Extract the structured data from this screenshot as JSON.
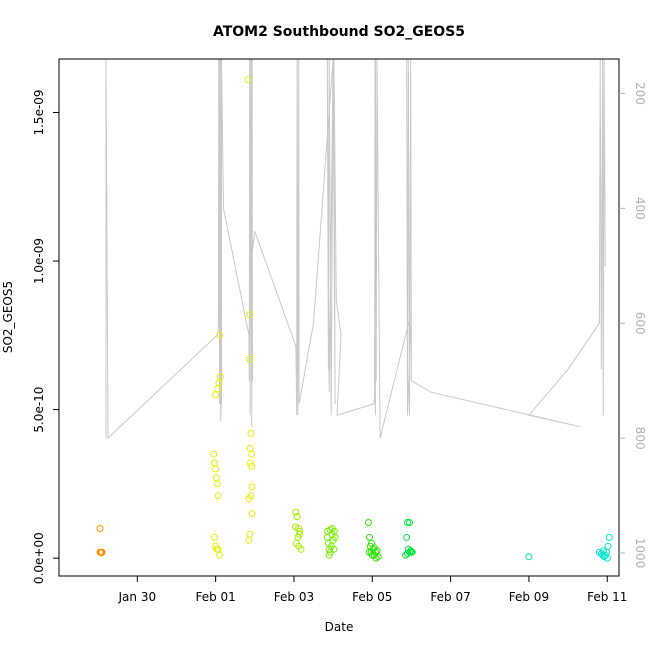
{
  "chart_data": {
    "type": "scatter",
    "title": "ATOM2 Southbound SO2_GEOS5",
    "xlabel": "Date",
    "ylabel": "SO2_GEOS5",
    "x_ticks": [
      "Jan 30",
      "Feb 01",
      "Feb 03",
      "Feb 05",
      "Feb 07",
      "Feb 09",
      "Feb 11"
    ],
    "x_tick_days": [
      30,
      32,
      34,
      36,
      38,
      40,
      42
    ],
    "y_ticks": [
      "0.0e+00",
      "5.0e-10",
      "1.0e-09",
      "1.5e-09"
    ],
    "y_tick_values": [
      0,
      5e-10,
      1e-09,
      1.5e-09
    ],
    "y2_ticks": [
      "200",
      "400",
      "600",
      "800",
      "1000"
    ],
    "y2_tick_values": [
      200,
      400,
      600,
      800,
      1000
    ],
    "xlim": [
      "Jan 28",
      "Feb 11"
    ],
    "ylim": [
      -6e-11,
      1.68e-09
    ],
    "y2lim": [
      1040,
      140
    ],
    "grid": false,
    "series": [
      {
        "color": "#ff8c00",
        "points": [
          [
            29.05,
            1e-10
          ],
          [
            29.05,
            2e-11
          ],
          [
            29.07,
            1.8e-11
          ],
          [
            29.09,
            1.9e-11
          ],
          [
            29.1,
            2e-11
          ]
        ]
      },
      {
        "color": "#e6f000",
        "points": [
          [
            31.95,
            3.5e-10
          ],
          [
            31.97,
            3.2e-10
          ],
          [
            32.0,
            3e-10
          ],
          [
            32.02,
            2.7e-10
          ],
          [
            32.04,
            2.5e-10
          ],
          [
            32.06,
            2.1e-10
          ],
          [
            31.97,
            7e-11
          ],
          [
            32.0,
            4e-11
          ],
          [
            32.03,
            3e-11
          ],
          [
            32.06,
            3e-11
          ],
          [
            32.1,
            1e-11
          ],
          [
            32.0,
            5.5e-10
          ],
          [
            32.05,
            5.7e-10
          ],
          [
            32.08,
            5.9e-10
          ],
          [
            32.12,
            6.1e-10
          ],
          [
            32.1,
            7.5e-10
          ],
          [
            32.83,
            1.61e-09
          ],
          [
            32.87,
            8.2e-10
          ],
          [
            32.87,
            6.7e-10
          ],
          [
            32.9,
            4.2e-10
          ],
          [
            32.88,
            3.7e-10
          ],
          [
            32.92,
            3.5e-10
          ],
          [
            32.88,
            3.2e-10
          ],
          [
            32.92,
            3.1e-10
          ],
          [
            32.93,
            2.4e-10
          ],
          [
            32.9,
            2.1e-10
          ],
          [
            32.85,
            2e-10
          ],
          [
            32.93,
            1.5e-10
          ],
          [
            32.87,
            8e-11
          ],
          [
            32.85,
            6e-11
          ]
        ]
      },
      {
        "color": "#a6ef00",
        "points": [
          [
            34.05,
            1.55e-10
          ],
          [
            34.08,
            1.4e-10
          ],
          [
            34.12,
            1e-10
          ],
          [
            34.15,
            9e-11
          ],
          [
            34.1,
            7e-11
          ],
          [
            34.06,
            5e-11
          ],
          [
            34.12,
            4e-11
          ],
          [
            34.18,
            3e-11
          ],
          [
            34.04,
            1.05e-10
          ],
          [
            34.14,
            8e-11
          ]
        ]
      },
      {
        "color": "#78ef00",
        "points": [
          [
            34.85,
            7e-11
          ],
          [
            34.88,
            5e-11
          ],
          [
            34.9,
            3e-11
          ],
          [
            34.93,
            2e-11
          ],
          [
            34.95,
            4e-11
          ],
          [
            34.97,
            8e-11
          ],
          [
            35.0,
            6e-11
          ],
          [
            35.02,
            3e-11
          ],
          [
            34.9,
            1e-11
          ],
          [
            34.86,
            9e-11
          ],
          [
            34.92,
            9.5e-11
          ],
          [
            34.98,
            1e-10
          ],
          [
            35.03,
            9e-11
          ],
          [
            35.05,
            7e-11
          ]
        ]
      },
      {
        "color": "#28e600",
        "points": [
          [
            35.9,
            1.2e-10
          ],
          [
            35.93,
            7e-11
          ],
          [
            35.95,
            4e-11
          ],
          [
            35.97,
            2e-11
          ],
          [
            36.0,
            1e-11
          ],
          [
            36.02,
            3e-11
          ],
          [
            36.05,
            1e-11
          ],
          [
            36.08,
            2e-11
          ],
          [
            36.1,
            0
          ],
          [
            36.12,
            2.5e-11
          ],
          [
            35.98,
            5e-11
          ],
          [
            36.05,
            3.5e-11
          ],
          [
            35.92,
            2e-11
          ],
          [
            36.15,
            5e-12
          ]
        ]
      },
      {
        "color": "#00e63c",
        "points": [
          [
            36.9,
            1.2e-10
          ],
          [
            36.95,
            1.2e-10
          ],
          [
            36.88,
            7e-11
          ],
          [
            36.92,
            3e-11
          ],
          [
            36.95,
            2e-11
          ],
          [
            36.98,
            2.5e-11
          ],
          [
            37.0,
            2e-11
          ],
          [
            36.85,
            1e-11
          ],
          [
            36.9,
            1.5e-11
          ],
          [
            37.02,
            2e-11
          ]
        ]
      },
      {
        "color": "#00e6a0",
        "points": [
          [
            40.0,
            5e-12
          ]
        ]
      },
      {
        "color": "#00e6c8",
        "points": [
          [
            41.8,
            2e-11
          ],
          [
            41.85,
            1.5e-11
          ],
          [
            41.88,
            1e-11
          ],
          [
            41.92,
            5e-12
          ],
          [
            41.95,
            1e-11
          ],
          [
            41.98,
            2e-11
          ],
          [
            42.02,
            4e-11
          ],
          [
            42.05,
            7e-11
          ],
          [
            42.0,
            0
          ],
          [
            41.9,
            2.5e-11
          ]
        ]
      }
    ],
    "pressure_trace": {
      "color": "#c8c8c8",
      "x_days": [
        29.2,
        29.2,
        29.25,
        32.05,
        32.07,
        32.08,
        32.1,
        32.12,
        32.14,
        32.1,
        32.13,
        32.1,
        32.15,
        32.15,
        32.2,
        32.85,
        32.86,
        32.87,
        32.88,
        32.9,
        32.92,
        32.93,
        32.94,
        32.92,
        32.93,
        33.0,
        34.05,
        34.07,
        34.08,
        34.1,
        34.12,
        34.1,
        34.12,
        34.13,
        34.5,
        35.0,
        34.9,
        34.85,
        34.88,
        34.9,
        34.95,
        35.0,
        35.05,
        35.02,
        35.08,
        35.2,
        35.1,
        36.05,
        36.06,
        36.07,
        36.08,
        36.08,
        36.1,
        36.12,
        36.2,
        37.0,
        36.9,
        36.88,
        36.9,
        36.92,
        36.95,
        36.98,
        37.0,
        37.5,
        41.3,
        40.0,
        41.0,
        41.8,
        41.82,
        41.85,
        41.88,
        41.9,
        41.92,
        41.95,
        41.97
      ],
      "pressure": [
        800,
        140,
        800,
        620,
        600,
        140,
        740,
        140,
        760,
        140,
        770,
        140,
        740,
        140,
        400,
        620,
        700,
        140,
        760,
        140,
        780,
        140,
        700,
        140,
        480,
        440,
        640,
        760,
        140,
        750,
        140,
        760,
        140,
        740,
        600,
        140,
        720,
        140,
        680,
        140,
        760,
        140,
        740,
        140,
        560,
        620,
        760,
        740,
        720,
        140,
        760,
        140,
        700,
        140,
        800,
        580,
        760,
        140,
        720,
        140,
        760,
        140,
        700,
        720,
        780,
        760,
        680,
        600,
        140,
        680,
        140,
        760,
        140,
        500,
        500
      ]
    }
  }
}
